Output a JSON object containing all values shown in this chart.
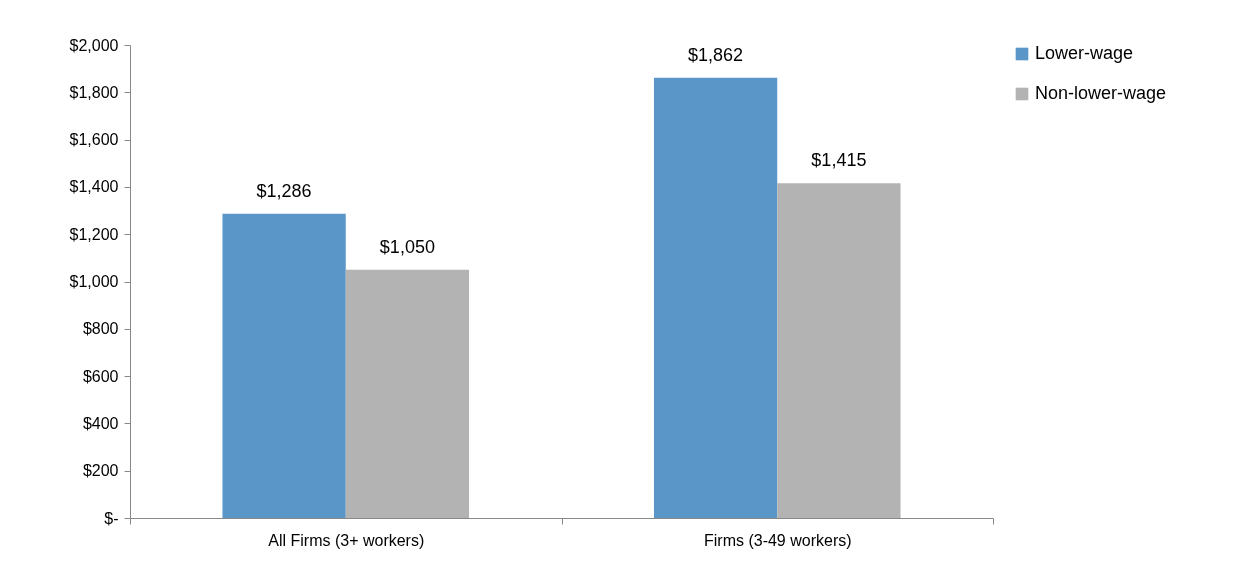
{
  "chart_data": {
    "type": "bar",
    "categories": [
      "All Firms (3+ workers)",
      "Firms (3-49 workers)"
    ],
    "series": [
      {
        "name": "Lower-wage",
        "color": "#5b96c9",
        "values": [
          1286,
          1862
        ],
        "value_labels": [
          "$1,286",
          "$1,862"
        ]
      },
      {
        "name": "Non-lower-wage",
        "color": "#b3b3b3",
        "values": [
          1050,
          1415
        ],
        "value_labels": [
          "$1,050",
          "$1,415"
        ]
      }
    ],
    "ylim": [
      0,
      2000
    ],
    "yticks": [
      {
        "value": 0,
        "label": "$-"
      },
      {
        "value": 200,
        "label": "$200"
      },
      {
        "value": 400,
        "label": "$400"
      },
      {
        "value": 600,
        "label": "$600"
      },
      {
        "value": 800,
        "label": "$800"
      },
      {
        "value": 1000,
        "label": "$1,000"
      },
      {
        "value": 1200,
        "label": "$1,200"
      },
      {
        "value": 1400,
        "label": "$1,400"
      },
      {
        "value": 1600,
        "label": "$1,600"
      },
      {
        "value": 1800,
        "label": "$1,800"
      },
      {
        "value": 2000,
        "label": "$2,000"
      }
    ],
    "legend": "right",
    "grid": false
  }
}
